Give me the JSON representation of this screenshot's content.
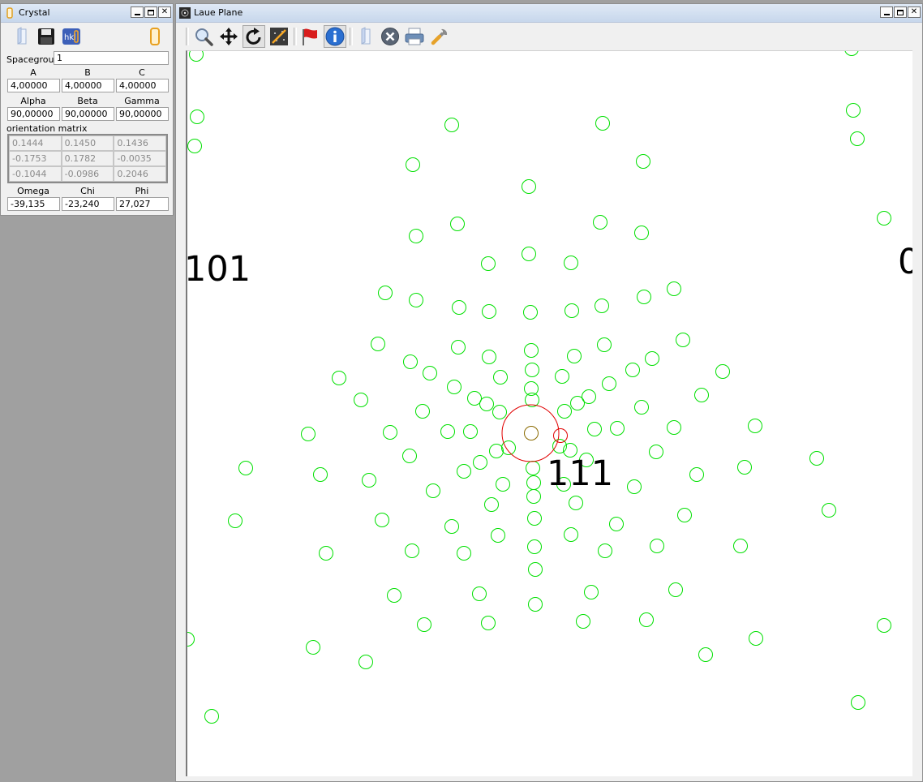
{
  "crystal": {
    "title": "Crystal",
    "toolbar": {
      "hkl_label": "hkl"
    },
    "spacegroup_label": "Spacegroup",
    "spacegroup_value": "1",
    "a_label": "A",
    "b_label": "B",
    "c_label": "C",
    "a_value": "4,00000",
    "b_value": "4,00000",
    "c_value": "4,00000",
    "alpha_label": "Alpha",
    "beta_label": "Beta",
    "gamma_label": "Gamma",
    "alpha_value": "90,00000",
    "beta_value": "90,00000",
    "gamma_value": "90,00000",
    "matrix_label": "orientation matrix",
    "matrix": [
      [
        "0.1444",
        "0.1450",
        "0.1436"
      ],
      [
        "-0.1753",
        "0.1782",
        "-0.0035"
      ],
      [
        "-0.1044",
        "-0.0986",
        "0.2046"
      ]
    ],
    "omega_label": "Omega",
    "chi_label": "Chi",
    "phi_label": "Phi",
    "omega_value": "-39,135",
    "chi_value": "-23,240",
    "phi_value": "27,027"
  },
  "laue": {
    "title": "Laue Plane",
    "labels": [
      {
        "text": "101"
      },
      {
        "text": "111"
      },
      {
        "text": "0"
      }
    ],
    "colors": {
      "spot": "#00e000",
      "marker": "#e00000",
      "accent": "#f5a623"
    }
  }
}
